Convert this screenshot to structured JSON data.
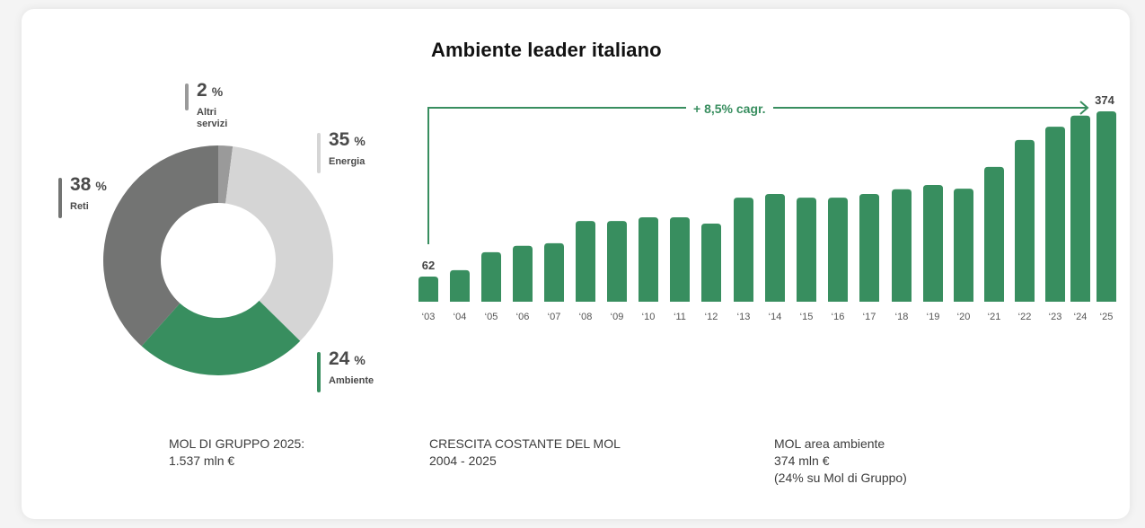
{
  "title": "Ambiente leader italiano",
  "colors": {
    "green": "#388e5f",
    "dark_gray": "#737473",
    "light_gray": "#d5d5d5",
    "mid_gray": "#9a9a9a"
  },
  "donut": {
    "segments": [
      {
        "name": "Altri servizi",
        "value": 2,
        "pct_text": "2",
        "label_lines": [
          "Altri",
          "servizi"
        ],
        "color": "#9a9a9a"
      },
      {
        "name": "Energia",
        "value": 35,
        "pct_text": "35",
        "label_lines": [
          "Energia"
        ],
        "color": "#d5d5d5"
      },
      {
        "name": "Ambiente",
        "value": 24,
        "pct_text": "24",
        "label_lines": [
          "Ambiente"
        ],
        "color": "#388e5f"
      },
      {
        "name": "Reti",
        "value": 38,
        "pct_text": "38",
        "label_lines": [
          "Reti"
        ],
        "color": "#737473"
      }
    ],
    "percent_symbol": "%"
  },
  "cagr_label": "+ 8,5% cagr.",
  "chart_data": [
    {
      "type": "pie",
      "title": "MOL di Gruppo 2025",
      "categories": [
        "Altri servizi",
        "Energia",
        "Ambiente",
        "Reti"
      ],
      "values": [
        2,
        35,
        24,
        38
      ],
      "unit": "%"
    },
    {
      "type": "bar",
      "title": "Ambiente leader italiano",
      "categories": [
        "'03",
        "'04",
        "'05",
        "'06",
        "'07",
        "'08",
        "'09",
        "'10",
        "'11",
        "'12",
        "'13",
        "'14",
        "'15",
        "'16",
        "'17",
        "'18",
        "'19",
        "'20",
        "'21",
        "'22",
        "'23",
        "'24",
        "'25"
      ],
      "tick_labels": [
        "‘03",
        "‘04",
        "‘05",
        "‘06",
        "‘07",
        "‘08",
        "‘09",
        "‘10",
        "‘11",
        "‘12",
        "‘13",
        "‘14",
        "‘15",
        "‘16",
        "‘17",
        "‘18",
        "‘19",
        "‘20",
        "‘21",
        "‘22",
        "‘23",
        "‘24",
        "‘25"
      ],
      "values": [
        62,
        74,
        108,
        120,
        125,
        167,
        167,
        174,
        174,
        162,
        211,
        218,
        211,
        211,
        218,
        227,
        235,
        228,
        269,
        320,
        345,
        366,
        374
      ],
      "data_labels": {
        "first": "62",
        "last": "374"
      },
      "annotation": "+ 8,5% cagr.",
      "xlabel": "",
      "ylabel": "",
      "grid": false,
      "ylim": [
        0,
        374
      ]
    }
  ],
  "footers": {
    "left": {
      "line1": "MOL DI GRUPPO 2025:",
      "line2": "1.537 mln €"
    },
    "middle": {
      "line1": "CRESCITA COSTANTE DEL MOL",
      "line2": "2004 - 2025"
    },
    "right": {
      "line1": "MOL area ambiente",
      "line2": "374 mln €",
      "line3": "(24% su Mol di Gruppo)"
    }
  }
}
